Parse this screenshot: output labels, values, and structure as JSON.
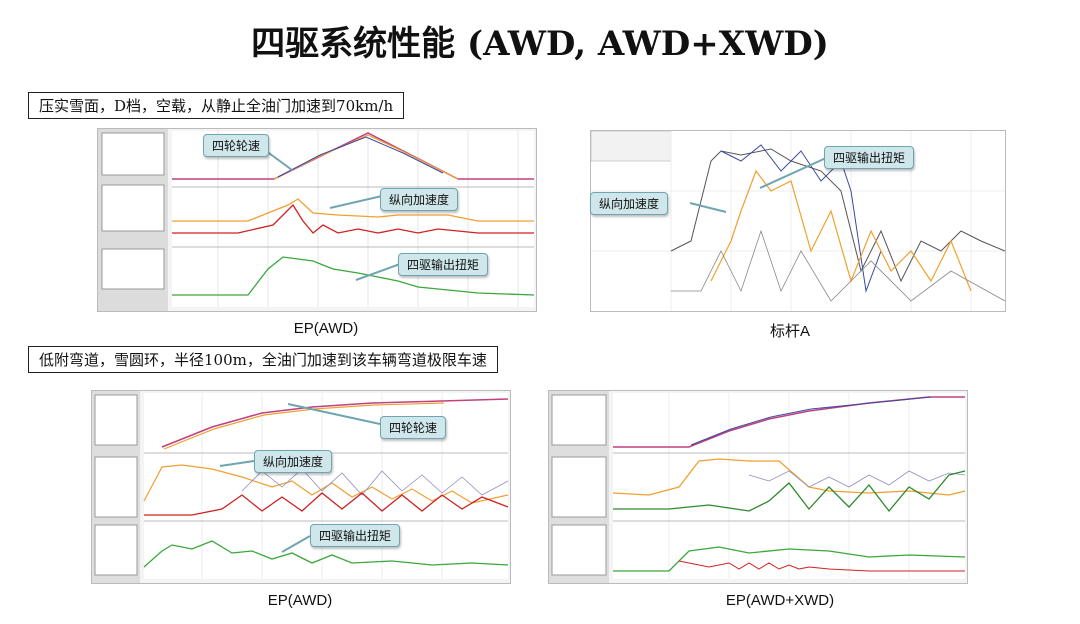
{
  "title": "四驱系统性能 (AWD, AWD+XWD)",
  "notes": {
    "top": "压实雪面，D档，空载，从静止全油门加速到70km/h",
    "bottom": "低附弯道，雪圆环，半径100m，全油门加速到该车辆弯道极限车速"
  },
  "captions": {
    "top_left": "EP(AWD)",
    "top_right": "标杆A",
    "bottom_left": "EP(AWD)",
    "bottom_right": "EP(AWD+XWD)"
  },
  "callouts": {
    "wheel_speed": "四轮轮速",
    "long_accel": "纵向加速度",
    "awd_torque": "四驱输出扭矩"
  },
  "colors": {
    "callout_fill": "#cfe6ea",
    "orange_trace": "#f0a030",
    "red_trace": "#d02020",
    "green_trace": "#3aa83a",
    "blue_trace": "#3a4aa0"
  }
}
